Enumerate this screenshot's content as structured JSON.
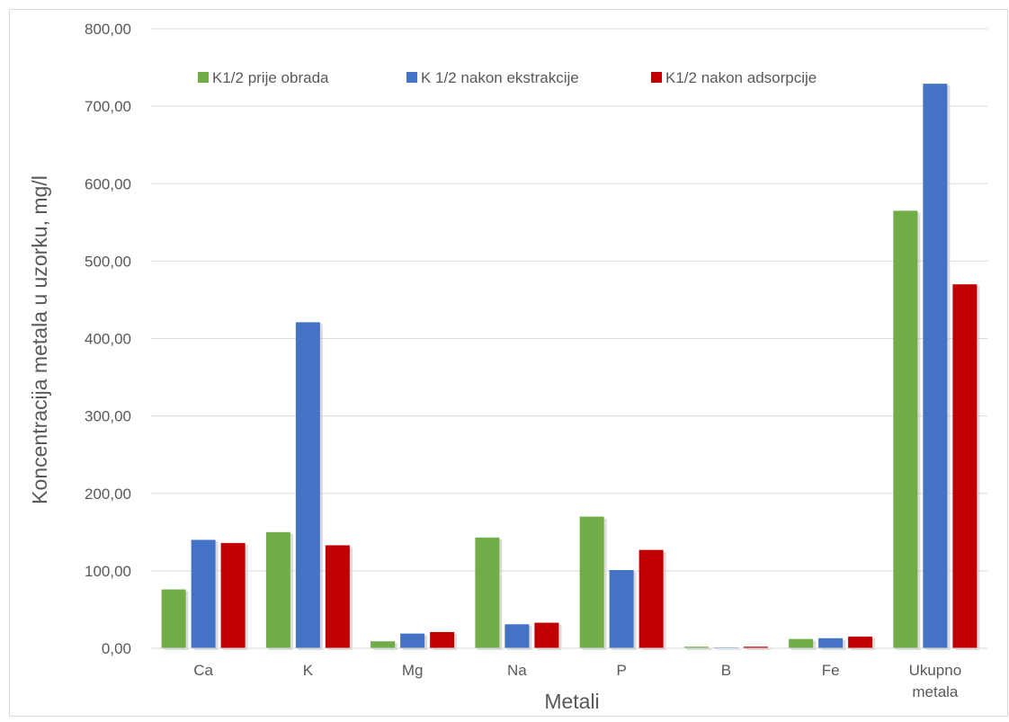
{
  "chart_data": {
    "type": "bar",
    "title": "",
    "xlabel": "Metali",
    "ylabel": "Koncentracija metala u uzorku, mg/l",
    "ylim": [
      0,
      800
    ],
    "y_ticks": [
      "0,00",
      "100,00",
      "200,00",
      "300,00",
      "400,00",
      "500,00",
      "600,00",
      "700,00",
      "800,00"
    ],
    "grid": true,
    "legend_position": "top",
    "categories": [
      [
        "Ca"
      ],
      [
        "K"
      ],
      [
        "Mg"
      ],
      [
        "Na"
      ],
      [
        "P"
      ],
      [
        "B"
      ],
      [
        "Fe"
      ],
      [
        "Ukupno",
        "metala"
      ]
    ],
    "series": [
      {
        "name": "K1/2 prije obrada",
        "color": "#70ad47",
        "values": [
          76,
          150,
          9,
          143,
          170,
          2,
          12,
          565
        ]
      },
      {
        "name": "K 1/2 nakon ekstrakcije",
        "color": "#4472c4",
        "values": [
          140,
          421,
          19,
          31,
          101,
          1,
          13,
          729
        ]
      },
      {
        "name": "K1/2 nakon adsorpcije",
        "color": "#c00000",
        "values": [
          136,
          133,
          21,
          33,
          127,
          2,
          15,
          470
        ]
      }
    ]
  }
}
